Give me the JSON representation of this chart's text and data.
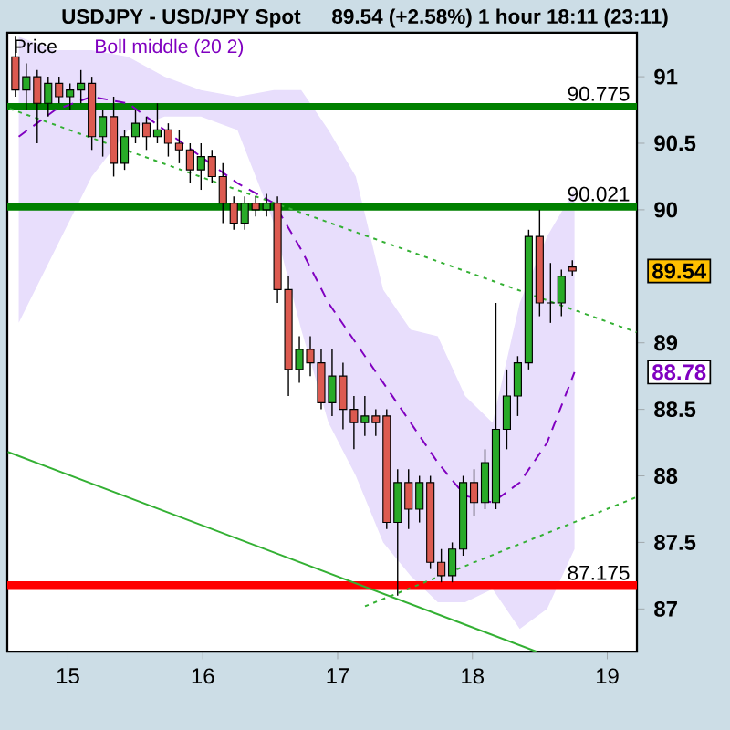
{
  "chart_data": {
    "type": "candlestick",
    "title": "USDJPY - USD/JPY Spot",
    "subtitle": "89.54 (+2.58%)   1 hour  18:11 (23:11)",
    "xlim": [
      14.55,
      19.22
    ],
    "xticks": [
      15,
      16,
      17,
      18,
      19
    ],
    "ylim": [
      86.68,
      91.33
    ],
    "yticks": [
      87,
      87.5,
      88,
      88.5,
      89,
      90,
      90.5,
      91
    ],
    "legend": "top left",
    "ref_lines": [
      {
        "axis": "y",
        "value": 90.775,
        "label": "90.775",
        "color": "#008000"
      },
      {
        "axis": "y",
        "value": 90.021,
        "label": "90.021",
        "color": "#008000"
      },
      {
        "axis": "y",
        "value": 87.175,
        "label": "87.175",
        "color": "#ff0000"
      }
    ],
    "annotations": [
      "89.54",
      "88.78"
    ],
    "series": [
      {
        "name": "Boll middle (20 2)",
        "type": "line",
        "color": "#8000c0",
        "line_style": "dashed",
        "x": [
          14.635,
          14.905,
          15.176,
          15.446,
          15.716,
          15.986,
          16.257,
          16.527,
          16.73,
          16.932,
          17.135,
          17.338,
          17.541,
          17.743,
          17.946,
          18.149,
          18.351,
          18.554,
          18.757
        ],
        "values": [
          90.55,
          90.75,
          90.85,
          90.8,
          90.6,
          90.4,
          90.2,
          90.05,
          89.7,
          89.3,
          89.0,
          88.7,
          88.4,
          88.1,
          87.85,
          87.8,
          87.95,
          88.25,
          88.78
        ],
        "upper": [
          91.3,
          91.2,
          91.2,
          91.15,
          91.0,
          90.9,
          90.85,
          90.9,
          90.9,
          90.6,
          90.25,
          89.4,
          89.1,
          89.05,
          88.6,
          88.4,
          89.3,
          89.8,
          90.15
        ],
        "lower": [
          89.15,
          89.7,
          90.25,
          90.6,
          90.7,
          90.7,
          90.6,
          89.9,
          89.1,
          88.4,
          88.0,
          87.5,
          87.25,
          87.05,
          87.05,
          87.15,
          86.85,
          87.0,
          87.45
        ]
      },
      {
        "type": "line",
        "color": "#33b033",
        "line_style": "dotted",
        "x": [
          14.568,
          19.216
        ],
        "values": [
          90.76,
          89.08
        ]
      },
      {
        "type": "line",
        "color": "#33b033",
        "line_style": "dotted",
        "x": [
          17.203,
          19.216
        ],
        "values": [
          87.02,
          87.84
        ]
      },
      {
        "type": "line",
        "color": "#33b033",
        "line_style": "solid",
        "x": [
          14.554,
          18.473
        ],
        "values": [
          88.18,
          86.68
        ]
      },
      {
        "name": "Price",
        "x": [
          14.61,
          14.691,
          14.772,
          14.853,
          14.934,
          15.015,
          15.096,
          15.177,
          15.258,
          15.339,
          15.42,
          15.501,
          15.582,
          15.663,
          15.744,
          15.825,
          15.906,
          15.987,
          16.068,
          16.149,
          16.23,
          16.311,
          16.392,
          16.473,
          16.554,
          16.635,
          16.716,
          16.797,
          16.878,
          16.959,
          17.04,
          17.121,
          17.202,
          17.283,
          17.364,
          17.445,
          17.526,
          17.607,
          17.688,
          17.769,
          17.85,
          17.931,
          18.012,
          18.093,
          18.174,
          18.255,
          18.336,
          18.417,
          18.498,
          18.579,
          18.66,
          18.741
        ],
        "ohlc": [
          [
            91.15,
            91.3,
            90.85,
            90.9
          ],
          [
            90.9,
            91.1,
            90.75,
            91.0
          ],
          [
            91.0,
            91.05,
            90.5,
            90.8
          ],
          [
            90.8,
            91.0,
            90.7,
            90.95
          ],
          [
            90.95,
            91.0,
            90.8,
            90.85
          ],
          [
            90.85,
            90.95,
            90.75,
            90.9
          ],
          [
            90.9,
            91.05,
            90.8,
            90.95
          ],
          [
            90.95,
            91.0,
            90.45,
            90.55
          ],
          [
            90.55,
            90.75,
            90.4,
            90.7
          ],
          [
            90.7,
            90.85,
            90.25,
            90.35
          ],
          [
            90.35,
            90.6,
            90.3,
            90.55
          ],
          [
            90.55,
            90.75,
            90.5,
            90.65
          ],
          [
            90.65,
            90.7,
            90.45,
            90.55
          ],
          [
            90.55,
            90.8,
            90.5,
            90.6
          ],
          [
            90.6,
            90.65,
            90.4,
            90.5
          ],
          [
            90.5,
            90.6,
            90.35,
            90.45
          ],
          [
            90.45,
            90.5,
            90.2,
            90.3
          ],
          [
            90.3,
            90.5,
            90.15,
            90.4
          ],
          [
            90.4,
            90.45,
            90.2,
            90.25
          ],
          [
            90.25,
            90.35,
            89.9,
            90.05
          ],
          [
            90.05,
            90.1,
            89.85,
            89.9
          ],
          [
            89.9,
            90.1,
            89.85,
            90.05
          ],
          [
            90.05,
            90.1,
            89.95,
            90.0
          ],
          [
            90.0,
            90.12,
            89.95,
            90.05
          ],
          [
            90.05,
            90.1,
            89.3,
            89.4
          ],
          [
            89.4,
            89.5,
            88.6,
            88.8
          ],
          [
            88.8,
            89.05,
            88.7,
            88.95
          ],
          [
            88.95,
            89.05,
            88.75,
            88.85
          ],
          [
            88.85,
            88.95,
            88.5,
            88.55
          ],
          [
            88.55,
            88.95,
            88.45,
            88.75
          ],
          [
            88.75,
            88.85,
            88.35,
            88.5
          ],
          [
            88.5,
            88.6,
            88.2,
            88.4
          ],
          [
            88.4,
            88.6,
            88.3,
            88.45
          ],
          [
            88.45,
            88.5,
            88.3,
            88.4
          ],
          [
            88.45,
            88.5,
            87.6,
            87.65
          ],
          [
            87.65,
            88.05,
            87.1,
            87.95
          ],
          [
            87.95,
            88.05,
            87.6,
            87.75
          ],
          [
            87.75,
            88.0,
            87.65,
            87.95
          ],
          [
            87.95,
            88.0,
            87.3,
            87.35
          ],
          [
            87.35,
            87.45,
            87.2,
            87.25
          ],
          [
            87.25,
            87.5,
            87.2,
            87.45
          ],
          [
            87.45,
            88.0,
            87.4,
            87.95
          ],
          [
            87.95,
            88.05,
            87.7,
            87.8
          ],
          [
            87.8,
            88.2,
            87.75,
            88.1
          ],
          [
            87.8,
            89.3,
            87.75,
            88.35
          ],
          [
            88.35,
            88.8,
            88.2,
            88.6
          ],
          [
            88.6,
            88.9,
            88.45,
            88.85
          ],
          [
            88.85,
            89.85,
            88.8,
            89.8
          ],
          [
            89.8,
            90.0,
            89.2,
            89.3
          ],
          [
            89.3,
            89.6,
            89.15,
            89.3
          ],
          [
            89.3,
            89.55,
            89.2,
            89.5
          ],
          [
            89.57,
            89.62,
            89.5,
            89.54
          ]
        ]
      }
    ]
  }
}
